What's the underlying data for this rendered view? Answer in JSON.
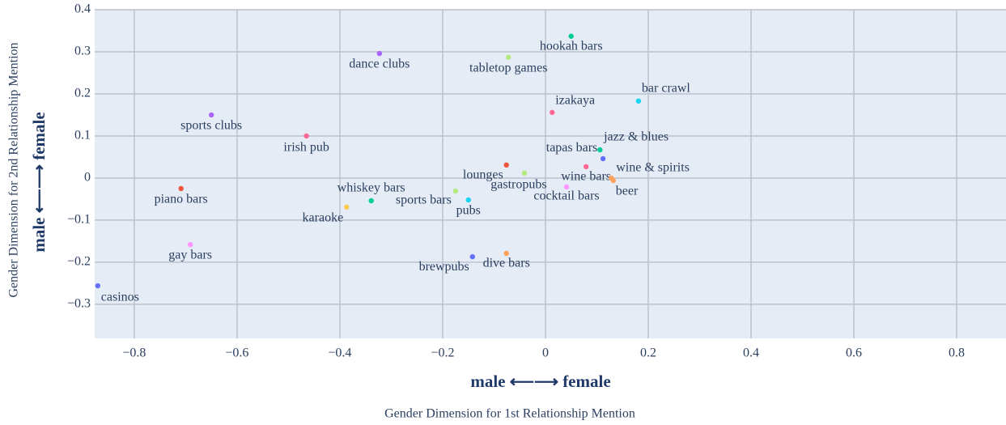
{
  "chart_data": {
    "type": "scatter",
    "x_title": "Gender Dimension for 1st Relationship Mention",
    "y_title": "Gender Dimension for 2nd Relationship Mention",
    "x_annotation": "male ⟵⟶ female",
    "y_annotation": "male ⟵⟶ female",
    "labels": [
      "hookah bars",
      "dance clubs",
      "tabletop games",
      "bar crawl",
      "izakaya",
      "sports clubs",
      "irish pub",
      "tapas bars",
      "jazz & blues",
      "lounges",
      "wine bars",
      "gastropubs",
      "wine & spirits",
      "beer",
      "cocktail bars",
      "whiskey bars",
      "sports bars",
      "pubs",
      "piano bars",
      "karaoke",
      "gay bars",
      "dive bars",
      "brewpubs",
      "casinos"
    ],
    "x": [
      0.05,
      -0.323,
      -0.072,
      0.181,
      0.013,
      -0.65,
      -0.465,
      0.106,
      0.112,
      -0.076,
      0.079,
      -0.041,
      0.128,
      0.132,
      0.041,
      -0.339,
      -0.175,
      -0.15,
      -0.709,
      -0.387,
      -0.691,
      -0.076,
      -0.142,
      -0.871
    ],
    "y": [
      0.337,
      0.296,
      0.287,
      0.183,
      0.156,
      0.15,
      0.1,
      0.067,
      0.046,
      0.031,
      0.027,
      0.012,
      0.0,
      -0.006,
      -0.021,
      -0.054,
      -0.031,
      -0.052,
      -0.025,
      -0.069,
      -0.158,
      -0.179,
      -0.187,
      -0.256
    ],
    "colors": [
      "#00cc96",
      "#ab63fa",
      "#b6e880",
      "#19d3f3",
      "#ff6692",
      "#ab63fa",
      "#ff6692",
      "#00cc96",
      "#636efa",
      "#ef553b",
      "#ff6692",
      "#b6e880",
      "#ffa15a",
      "#ffa15a",
      "#ff97ff",
      "#00cc96",
      "#b6e880",
      "#19d3f3",
      "#ef553b",
      "#fecb52",
      "#ff97ff",
      "#ffa15a",
      "#636efa",
      "#636efa"
    ],
    "xlim": [
      -0.877,
      0.896
    ],
    "ylim": [
      -0.381,
      0.4
    ],
    "xticks": [
      {
        "value": -0.8,
        "label": "−0.8"
      },
      {
        "value": -0.6,
        "label": "−0.6"
      },
      {
        "value": -0.4,
        "label": "−0.4"
      },
      {
        "value": -0.2,
        "label": "−0.2"
      },
      0,
      0.2,
      0.4,
      0.6,
      0.8
    ],
    "yticks": [
      {
        "value": -0.3,
        "label": "−0.3"
      },
      {
        "value": -0.2,
        "label": "−0.2"
      },
      {
        "value": -0.1,
        "label": "−0.1"
      },
      0,
      0.1,
      0.2,
      0.3,
      0.4
    ],
    "grid": true
  }
}
